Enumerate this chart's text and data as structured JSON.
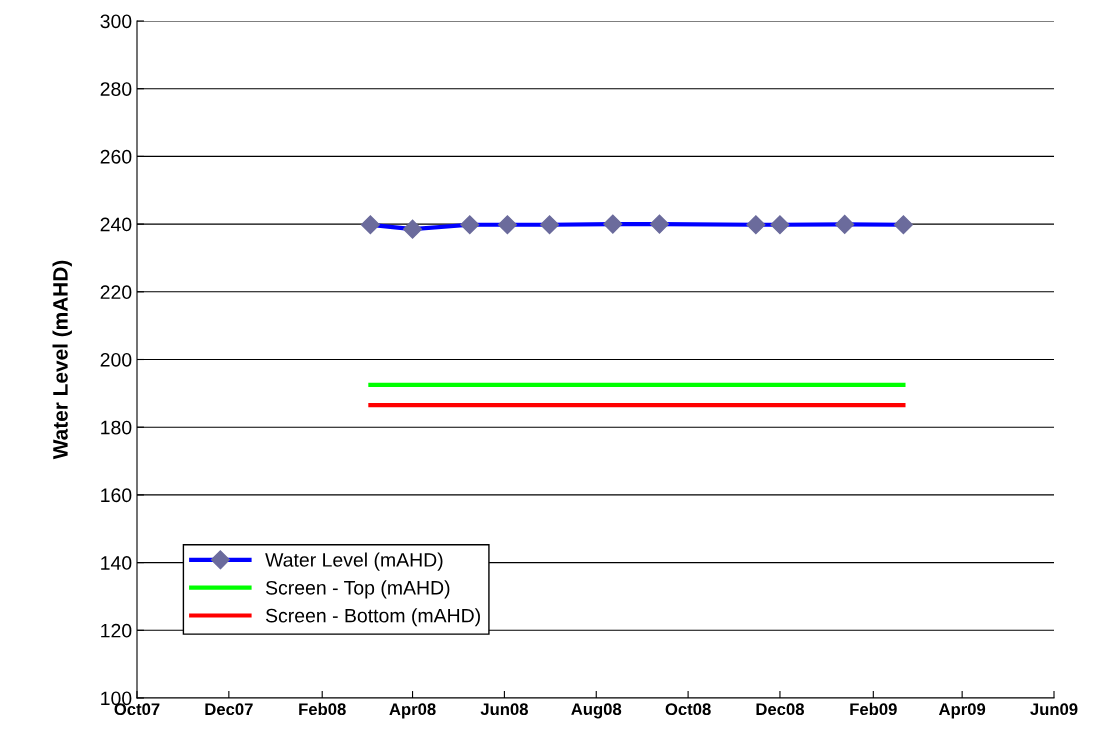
{
  "chart_data": {
    "type": "line",
    "ylabel": "Water Level (mAHD)",
    "series": [
      {
        "name": "Water Level (mAHD)",
        "color": "#0000ff",
        "marker": "diamond",
        "x": [
          "2008-03-04",
          "2008-04-01",
          "2008-05-09",
          "2008-06-03",
          "2008-07-01",
          "2008-08-12",
          "2008-09-12",
          "2008-11-15",
          "2008-12-01",
          "2009-01-13",
          "2009-02-21"
        ],
        "values": [
          239.8,
          238.5,
          239.8,
          239.8,
          239.8,
          240.0,
          240.0,
          239.8,
          239.8,
          239.9,
          239.8
        ]
      },
      {
        "name": "Screen - Top (mAHD)",
        "color": "#00ff00",
        "marker": "none",
        "x": [
          "2008-03-04",
          "2009-02-21"
        ],
        "values": [
          192.5,
          192.5
        ]
      },
      {
        "name": "Screen - Bottom (mAHD)",
        "color": "#ff0000",
        "marker": "none",
        "x": [
          "2008-03-04",
          "2009-02-21"
        ],
        "values": [
          186.5,
          186.5
        ]
      }
    ],
    "xlim": [
      "2007-10-01",
      "2009-06-01"
    ],
    "xticks": [
      {
        "value": "2007-10-01",
        "label": "Oct07"
      },
      {
        "value": "2007-12-01",
        "label": "Dec07"
      },
      {
        "value": "2008-02-01",
        "label": "Feb08"
      },
      {
        "value": "2008-04-01",
        "label": "Apr08"
      },
      {
        "value": "2008-06-01",
        "label": "Jun08"
      },
      {
        "value": "2008-08-01",
        "label": "Aug08"
      },
      {
        "value": "2008-10-01",
        "label": "Oct08"
      },
      {
        "value": "2008-12-01",
        "label": "Dec08"
      },
      {
        "value": "2009-02-01",
        "label": "Feb09"
      },
      {
        "value": "2009-04-01",
        "label": "Apr09"
      },
      {
        "value": "2009-06-01",
        "label": "Jun09"
      }
    ],
    "ylim": [
      100,
      300
    ],
    "yticks": [
      100,
      120,
      140,
      160,
      180,
      200,
      220,
      240,
      260,
      280,
      300
    ],
    "grid": "y",
    "legend": "bottom left"
  }
}
